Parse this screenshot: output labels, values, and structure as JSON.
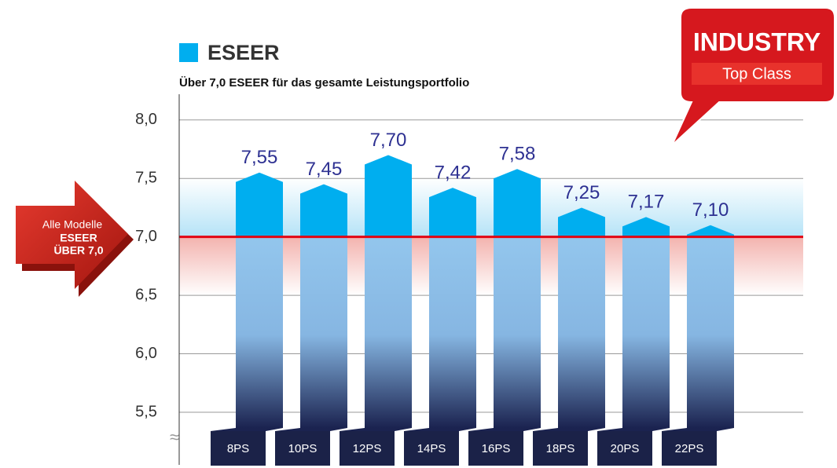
{
  "chart_data": {
    "type": "bar",
    "legend": "ESEER",
    "subtitle": "Über 7,0 ESEER für das gesamte Leistungsportfolio",
    "categories": [
      "8PS",
      "10PS",
      "12PS",
      "14PS",
      "16PS",
      "18PS",
      "20PS",
      "22PS"
    ],
    "values": [
      7.55,
      7.45,
      7.7,
      7.42,
      7.58,
      7.25,
      7.17,
      7.1
    ],
    "value_labels": [
      "7,55",
      "7,45",
      "7,70",
      "7,42",
      "7,58",
      "7,25",
      "7,17",
      "7,10"
    ],
    "color": "#00aeef",
    "threshold": 7.0,
    "threshold_color": "#e30613",
    "ylim": [
      5.5,
      8.2
    ],
    "yticks": [
      {
        "value": 5.5,
        "label": "5,5"
      },
      {
        "value": 6.0,
        "label": "6,0"
      },
      {
        "value": 6.5,
        "label": "6,5"
      },
      {
        "value": 7.0,
        "label": "7,0"
      },
      {
        "value": 7.5,
        "label": "7,5"
      },
      {
        "value": 8.0,
        "label": "8,0"
      }
    ],
    "grid": true,
    "badge": {
      "title": "INDUSTRY",
      "subtitle": "Top Class"
    },
    "arrow": {
      "line1": "Alle Modelle",
      "line2": "ESEER",
      "line3": "ÜBER 7,0"
    }
  }
}
